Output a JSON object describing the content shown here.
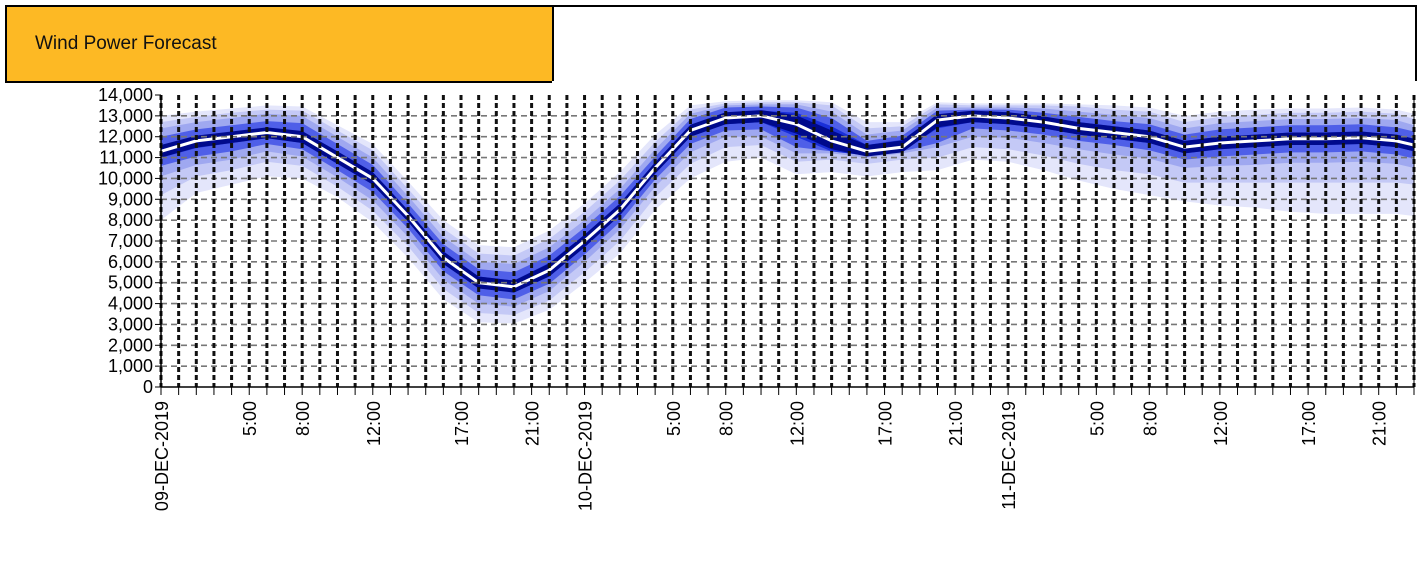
{
  "header": {
    "title": "Wind Power Forecast"
  },
  "chart_data": {
    "type": "area",
    "title": "Wind Power Forecast",
    "ylim": [
      0,
      14000
    ],
    "ytick_labels": [
      "0",
      "1,000",
      "2,000",
      "3,000",
      "4,000",
      "5,000",
      "6,000",
      "7,000",
      "8,000",
      "9,000",
      "10,000",
      "11,000",
      "12,000",
      "13,000",
      "14,000"
    ],
    "yticks": [
      0,
      1000,
      2000,
      3000,
      4000,
      5000,
      6000,
      7000,
      8000,
      9000,
      10000,
      11000,
      12000,
      13000,
      14000
    ],
    "x_start": "09-DEC-2019 0:00",
    "x_hours": 71,
    "xtick_labels": [
      {
        "h": 0,
        "label": "09-DEC-2019"
      },
      {
        "h": 5,
        "label": "5:00"
      },
      {
        "h": 8,
        "label": "8:00"
      },
      {
        "h": 12,
        "label": "12:00"
      },
      {
        "h": 17,
        "label": "17:00"
      },
      {
        "h": 21,
        "label": "21:00"
      },
      {
        "h": 24,
        "label": "10-DEC-2019"
      },
      {
        "h": 29,
        "label": "5:00"
      },
      {
        "h": 32,
        "label": "8:00"
      },
      {
        "h": 36,
        "label": "12:00"
      },
      {
        "h": 41,
        "label": "17:00"
      },
      {
        "h": 45,
        "label": "21:00"
      },
      {
        "h": 48,
        "label": "11-DEC-2019"
      },
      {
        "h": 53,
        "label": "5:00"
      },
      {
        "h": 56,
        "label": "8:00"
      },
      {
        "h": 60,
        "label": "12:00"
      },
      {
        "h": 65,
        "label": "17:00"
      },
      {
        "h": 69,
        "label": "21:00"
      }
    ],
    "grid": true,
    "colors": {
      "outer_band": "#E4E6FB",
      "band_2": "#C4C9F6",
      "band_3": "#9FA8F0",
      "band_4": "#4F5FE8",
      "inner_band": "#1A2FD8",
      "core_band": "#000A8C",
      "forecast": "#ffffff",
      "header_fill": "#FDB924"
    },
    "series": [
      {
        "x": [
          0,
          2,
          4,
          6,
          8,
          10,
          12,
          14,
          16,
          18,
          20,
          22,
          24,
          26,
          28,
          30,
          32,
          34,
          36,
          38,
          40,
          42,
          44,
          46,
          48,
          50,
          52,
          54,
          56,
          58,
          60,
          62,
          64,
          66,
          68,
          70,
          71
        ],
        "forecast": [
          11300,
          11800,
          12000,
          12200,
          12000,
          11000,
          10000,
          8200,
          6200,
          5000,
          4800,
          5600,
          7000,
          8500,
          10500,
          12300,
          12900,
          13000,
          12600,
          11800,
          11300,
          11500,
          12800,
          13000,
          12900,
          12700,
          12400,
          12200,
          12000,
          11500,
          11700,
          11800,
          11900,
          11900,
          11950,
          11800,
          11600
        ],
        "core_low": [
          11000,
          11450,
          11700,
          11950,
          11700,
          10700,
          9700,
          7950,
          5900,
          4750,
          4550,
          5300,
          6700,
          8250,
          10250,
          12000,
          12600,
          12700,
          12000,
          11300,
          11100,
          11300,
          12400,
          12700,
          12600,
          12400,
          12100,
          11900,
          11700,
          11200,
          11400,
          11500,
          11600,
          11600,
          11650,
          11500,
          11300
        ],
        "core_high": [
          11600,
          12000,
          12200,
          12400,
          12250,
          11300,
          10300,
          8450,
          6500,
          5300,
          5100,
          5950,
          7300,
          8800,
          10750,
          12550,
          13150,
          13250,
          13150,
          12500,
          11600,
          11850,
          13050,
          13200,
          13150,
          12950,
          12700,
          12500,
          12300,
          11800,
          12000,
          12100,
          12200,
          12200,
          12250,
          12100,
          11900
        ],
        "b4_low": [
          10600,
          11050,
          11300,
          11650,
          11400,
          10400,
          9350,
          7600,
          5550,
          4400,
          4200,
          4950,
          6350,
          7900,
          9950,
          11650,
          12300,
          12350,
          11500,
          11300,
          11100,
          11300,
          11700,
          12400,
          12300,
          12100,
          11800,
          11600,
          11350,
          10900,
          11050,
          11150,
          11250,
          11250,
          11300,
          11150,
          10950
        ],
        "b4_high": [
          12000,
          12350,
          12550,
          12750,
          12650,
          11650,
          10650,
          8800,
          6850,
          5650,
          5500,
          6300,
          7650,
          9150,
          11050,
          12850,
          13400,
          13450,
          13400,
          12900,
          11800,
          12050,
          13250,
          13300,
          13300,
          13150,
          12950,
          12750,
          12600,
          12100,
          12350,
          12450,
          12550,
          12550,
          12600,
          12450,
          12250
        ],
        "b3_low": [
          10100,
          10650,
          10900,
          11300,
          11050,
          10050,
          8950,
          7200,
          5150,
          4000,
          3850,
          4600,
          6000,
          7550,
          9600,
          11250,
          12000,
          12000,
          11200,
          11200,
          11000,
          11200,
          11500,
          12000,
          11950,
          11700,
          11400,
          11150,
          10950,
          10500,
          10600,
          10650,
          10750,
          10750,
          10800,
          10700,
          10500
        ],
        "b3_high": [
          12400,
          12700,
          12900,
          13100,
          13000,
          12000,
          11000,
          9150,
          7200,
          6000,
          5900,
          6700,
          8000,
          9500,
          11400,
          13100,
          13500,
          13550,
          13550,
          13200,
          12100,
          12300,
          13400,
          13400,
          13400,
          13350,
          13200,
          13050,
          12900,
          12400,
          12650,
          12750,
          12850,
          12850,
          12900,
          12800,
          12550
        ],
        "b2_low": [
          9200,
          10100,
          10400,
          10800,
          10600,
          9600,
          8450,
          6750,
          4700,
          3550,
          3450,
          4150,
          5500,
          7000,
          9100,
          10700,
          11500,
          11600,
          10800,
          10900,
          10700,
          10900,
          11000,
          11500,
          11400,
          11100,
          10700,
          10400,
          10200,
          9800,
          9800,
          9800,
          9800,
          9800,
          9800,
          9800,
          9700
        ],
        "b2_high": [
          12700,
          12950,
          13150,
          13300,
          13250,
          12300,
          11350,
          9500,
          7600,
          6400,
          6300,
          7100,
          8400,
          9900,
          11750,
          13300,
          13600,
          13650,
          13650,
          13500,
          12400,
          12500,
          13550,
          13500,
          13500,
          13500,
          13450,
          13300,
          13200,
          12700,
          12950,
          13050,
          13150,
          13150,
          13200,
          13100,
          12850
        ],
        "b1_low": [
          8000,
          9300,
          9700,
          10100,
          10000,
          9100,
          7900,
          6200,
          4200,
          3100,
          3050,
          3700,
          5000,
          6400,
          8500,
          10000,
          10800,
          11000,
          10200,
          10300,
          10100,
          10300,
          10400,
          10900,
          10800,
          10400,
          9900,
          9500,
          9200,
          8900,
          8700,
          8600,
          8400,
          8300,
          8300,
          8300,
          8200
        ],
        "b1_high": [
          13000,
          13200,
          13350,
          13500,
          13450,
          12550,
          11650,
          9850,
          8000,
          6800,
          6700,
          7500,
          8800,
          10300,
          12100,
          13500,
          13700,
          13750,
          13750,
          13650,
          12700,
          12700,
          13650,
          13600,
          13600,
          13600,
          13550,
          13500,
          13400,
          13000,
          13200,
          13300,
          13350,
          13350,
          13400,
          13300,
          13100
        ]
      }
    ]
  }
}
